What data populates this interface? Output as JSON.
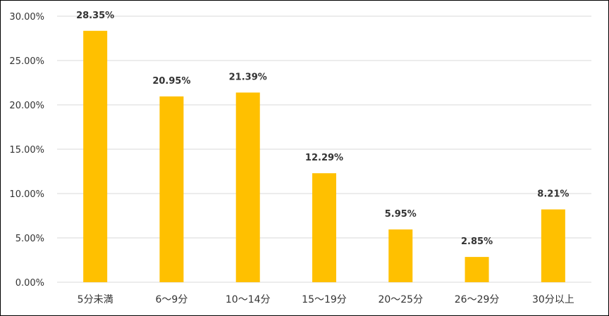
{
  "chart_data": {
    "type": "bar",
    "categories": [
      "5分未満",
      "6～9分",
      "10～14分",
      "15～19分",
      "20～25分",
      "26～29分",
      "30分以上"
    ],
    "values": [
      28.35,
      20.95,
      21.39,
      12.29,
      5.95,
      2.85,
      8.21
    ],
    "data_labels": [
      "28.35%",
      "20.95%",
      "21.39%",
      "12.29%",
      "5.95%",
      "2.85%",
      "8.21%"
    ],
    "y_ticks": [
      0,
      5,
      10,
      15,
      20,
      25,
      30
    ],
    "y_tick_labels": [
      "0.00%",
      "5.00%",
      "10.00%",
      "15.00%",
      "20.00%",
      "25.00%",
      "30.00%"
    ],
    "ylim": [
      0,
      30
    ],
    "grid": true,
    "legend": "none",
    "bar_color": "#FFC000",
    "grid_color": "#D9D9D9"
  }
}
